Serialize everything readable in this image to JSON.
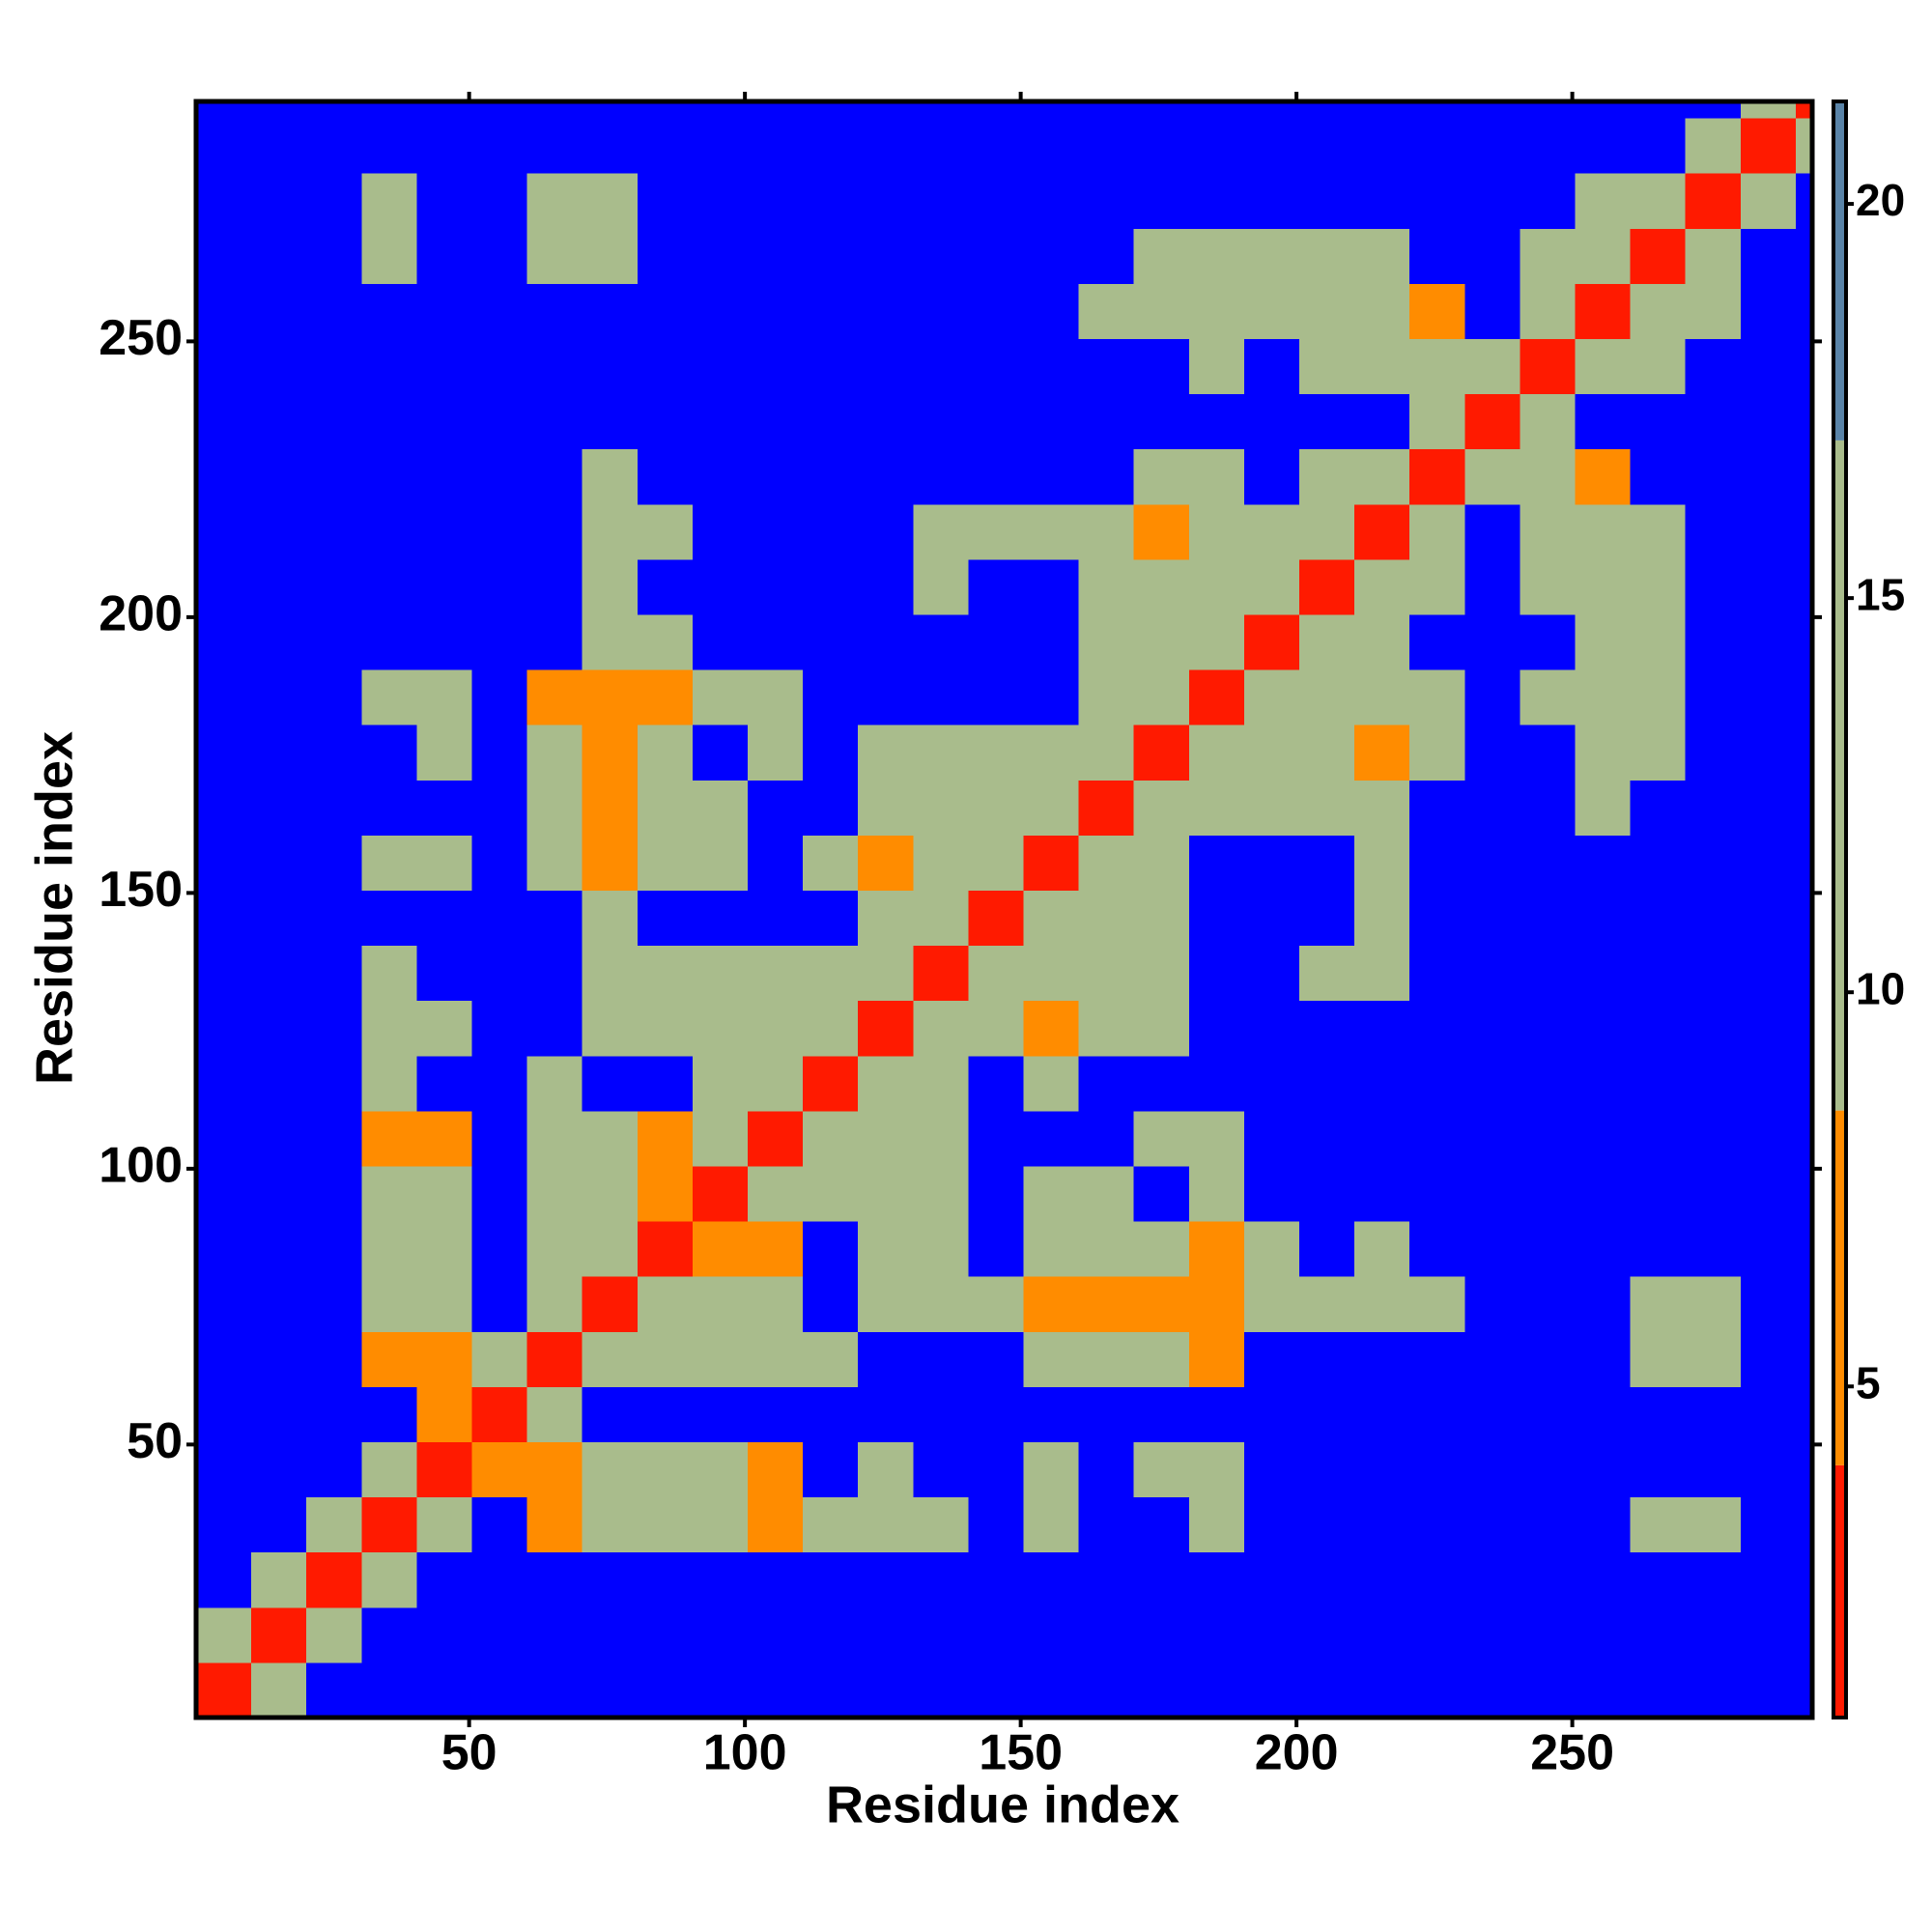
{
  "chart_data": {
    "type": "heatmap",
    "xlabel": "Residue index",
    "ylabel": "Residue index",
    "x_edges": [
      0.5,
      10.5,
      20.5,
      30.5,
      40.5,
      50.5,
      60.5,
      70.5,
      80.5,
      90.5,
      100.5,
      110.5,
      120.5,
      130.5,
      140.5,
      150.5,
      160.5,
      170.5,
      180.5,
      190.5,
      200.5,
      210.5,
      220.5,
      230.5,
      240.5,
      250.5,
      260.5,
      270.5,
      280.5,
      290.5,
      293.5
    ],
    "y_edges": [
      0.5,
      10.5,
      20.5,
      30.5,
      40.5,
      50.5,
      60.5,
      70.5,
      80.5,
      90.5,
      100.5,
      110.5,
      120.5,
      130.5,
      140.5,
      150.5,
      160.5,
      170.5,
      180.5,
      190.5,
      200.5,
      210.5,
      220.5,
      230.5,
      240.5,
      250.5,
      260.5,
      270.5,
      280.5,
      290.5,
      293.5
    ],
    "xlim": [
      0.5,
      293.5
    ],
    "ylim": [
      0.5,
      293.5
    ],
    "xticks": [
      50,
      100,
      150,
      200,
      250
    ],
    "yticks": [
      50,
      100,
      150,
      200,
      250
    ],
    "values": [
      [
        4,
        12,
        25,
        25,
        25,
        25,
        25,
        25,
        25,
        25,
        25,
        25,
        25,
        25,
        25,
        25,
        25,
        25,
        25,
        25,
        25,
        25,
        25,
        25,
        25,
        25,
        25,
        25,
        25,
        25
      ],
      [
        12,
        4,
        11,
        25,
        25,
        25,
        25,
        25,
        25,
        25,
        25,
        25,
        25,
        25,
        25,
        25,
        25,
        25,
        25,
        25,
        25,
        25,
        25,
        25,
        25,
        25,
        25,
        25,
        25,
        25
      ],
      [
        25,
        11,
        4,
        12,
        25,
        25,
        25,
        25,
        25,
        25,
        25,
        25,
        25,
        25,
        25,
        25,
        25,
        25,
        25,
        25,
        25,
        25,
        25,
        25,
        25,
        25,
        25,
        25,
        25,
        25
      ],
      [
        25,
        25,
        12,
        4,
        13,
        25,
        6,
        9,
        14,
        11,
        7,
        12,
        13,
        14,
        25,
        12,
        25,
        25,
        12,
        25,
        25,
        25,
        25,
        25,
        25,
        25,
        16,
        14,
        25,
        25
      ],
      [
        25,
        25,
        25,
        13,
        4,
        5,
        7,
        12,
        11,
        10,
        6,
        25,
        15,
        25,
        25,
        14,
        25,
        14,
        13,
        25,
        25,
        25,
        25,
        25,
        25,
        25,
        25,
        25,
        25,
        25
      ],
      [
        25,
        25,
        25,
        25,
        5,
        4,
        11,
        25,
        25,
        25,
        25,
        25,
        25,
        25,
        25,
        25,
        25,
        25,
        25,
        25,
        25,
        25,
        25,
        25,
        25,
        25,
        25,
        25,
        25,
        25
      ],
      [
        25,
        25,
        25,
        6,
        7,
        11,
        4,
        10,
        10,
        10,
        11,
        11,
        25,
        25,
        25,
        12,
        12,
        12,
        8,
        25,
        25,
        25,
        25,
        25,
        25,
        25,
        13,
        10,
        25,
        25
      ],
      [
        25,
        25,
        25,
        9,
        12,
        25,
        10,
        4,
        9,
        9,
        11,
        25,
        10,
        12,
        12,
        7,
        8,
        7,
        8,
        12,
        12,
        9,
        13,
        25,
        25,
        25,
        12,
        13,
        25,
        25
      ],
      [
        25,
        25,
        25,
        14,
        11,
        25,
        10,
        9,
        4,
        8,
        8,
        25,
        10,
        12,
        25,
        11,
        10,
        10,
        7,
        13,
        25,
        11,
        25,
        25,
        25,
        25,
        25,
        25,
        25,
        25
      ],
      [
        25,
        25,
        25,
        11,
        10,
        25,
        10,
        9,
        8,
        4,
        9,
        11,
        11,
        12,
        25,
        13,
        14,
        25,
        11,
        25,
        25,
        25,
        25,
        25,
        25,
        25,
        25,
        25,
        25,
        25
      ],
      [
        25,
        25,
        25,
        7,
        6,
        25,
        11,
        11,
        8,
        9,
        4,
        9,
        11,
        14,
        25,
        25,
        25,
        14,
        12,
        25,
        25,
        25,
        25,
        25,
        25,
        25,
        25,
        25,
        25,
        25
      ],
      [
        25,
        25,
        25,
        12,
        25,
        25,
        11,
        25,
        25,
        11,
        9,
        4,
        9,
        11,
        25,
        12,
        25,
        25,
        25,
        25,
        25,
        25,
        25,
        25,
        25,
        25,
        25,
        25,
        25,
        25
      ],
      [
        25,
        25,
        25,
        13,
        15,
        25,
        25,
        10,
        10,
        11,
        11,
        9,
        4,
        10,
        12,
        8,
        10,
        12,
        25,
        25,
        25,
        25,
        25,
        25,
        25,
        25,
        25,
        25,
        25,
        25
      ],
      [
        25,
        25,
        25,
        14,
        25,
        25,
        25,
        12,
        12,
        12,
        14,
        11,
        10,
        4,
        11,
        10,
        9,
        11,
        25,
        25,
        14,
        12,
        25,
        25,
        25,
        25,
        25,
        25,
        25,
        25
      ],
      [
        25,
        25,
        25,
        25,
        25,
        25,
        25,
        12,
        25,
        25,
        25,
        25,
        12,
        11,
        4,
        11,
        12,
        11,
        25,
        25,
        25,
        13,
        25,
        25,
        25,
        25,
        25,
        25,
        25,
        25
      ],
      [
        25,
        25,
        25,
        12,
        14,
        25,
        12,
        7,
        11,
        13,
        25,
        12,
        8,
        10,
        11,
        4,
        10,
        12,
        25,
        25,
        25,
        13,
        25,
        25,
        25,
        25,
        25,
        25,
        25,
        25
      ],
      [
        25,
        25,
        25,
        25,
        25,
        25,
        12,
        8,
        10,
        14,
        25,
        25,
        10,
        9,
        12,
        10,
        4,
        10,
        9,
        10,
        10,
        9,
        25,
        25,
        25,
        14,
        25,
        25,
        25,
        25
      ],
      [
        25,
        25,
        25,
        25,
        14,
        25,
        12,
        7,
        10,
        25,
        14,
        25,
        12,
        11,
        11,
        12,
        10,
        4,
        9,
        9,
        10,
        8,
        12,
        25,
        25,
        11,
        12,
        25,
        25,
        25
      ],
      [
        25,
        25,
        25,
        12,
        13,
        25,
        8,
        8,
        7,
        11,
        12,
        25,
        25,
        25,
        25,
        25,
        9,
        9,
        4,
        10,
        10,
        10,
        11,
        25,
        9,
        9,
        10,
        25,
        25,
        25
      ],
      [
        25,
        25,
        25,
        25,
        25,
        25,
        25,
        12,
        13,
        25,
        25,
        25,
        25,
        25,
        25,
        25,
        10,
        9,
        10,
        4,
        9,
        11,
        25,
        25,
        25,
        10,
        9,
        25,
        25,
        25
      ],
      [
        25,
        25,
        25,
        25,
        25,
        25,
        25,
        12,
        25,
        25,
        25,
        25,
        25,
        14,
        25,
        25,
        10,
        10,
        10,
        9,
        4,
        9,
        11,
        25,
        12,
        11,
        10,
        25,
        25,
        25
      ],
      [
        25,
        25,
        25,
        25,
        25,
        25,
        25,
        9,
        11,
        25,
        25,
        25,
        25,
        12,
        13,
        13,
        9,
        8,
        10,
        11,
        9,
        4,
        10,
        25,
        10,
        11,
        13,
        25,
        25,
        25
      ],
      [
        25,
        25,
        25,
        25,
        25,
        25,
        25,
        13,
        25,
        25,
        25,
        25,
        25,
        25,
        25,
        25,
        25,
        12,
        11,
        25,
        11,
        10,
        4,
        13,
        11,
        8,
        25,
        25,
        25,
        25
      ],
      [
        25,
        25,
        25,
        25,
        25,
        25,
        25,
        25,
        25,
        25,
        25,
        25,
        25,
        25,
        25,
        25,
        25,
        25,
        25,
        25,
        25,
        25,
        13,
        4,
        12,
        25,
        25,
        25,
        25,
        25
      ],
      [
        25,
        25,
        25,
        25,
        25,
        25,
        25,
        25,
        25,
        25,
        25,
        25,
        25,
        25,
        25,
        25,
        25,
        25,
        9,
        25,
        12,
        10,
        11,
        12,
        4,
        11,
        14,
        25,
        25,
        25
      ],
      [
        25,
        25,
        25,
        25,
        25,
        25,
        25,
        25,
        25,
        25,
        25,
        25,
        25,
        25,
        25,
        25,
        14,
        11,
        9,
        10,
        11,
        11,
        8,
        25,
        11,
        4,
        10,
        13,
        25,
        25
      ],
      [
        25,
        25,
        25,
        16,
        25,
        25,
        13,
        12,
        25,
        25,
        25,
        25,
        25,
        25,
        25,
        25,
        25,
        12,
        10,
        9,
        10,
        13,
        25,
        25,
        14,
        10,
        4,
        10,
        25,
        25
      ],
      [
        25,
        25,
        25,
        14,
        25,
        25,
        10,
        13,
        25,
        25,
        25,
        25,
        25,
        25,
        25,
        25,
        25,
        25,
        25,
        25,
        25,
        25,
        25,
        25,
        25,
        13,
        10,
        4,
        11,
        25
      ],
      [
        25,
        25,
        25,
        25,
        25,
        25,
        25,
        25,
        25,
        25,
        25,
        25,
        25,
        25,
        25,
        25,
        25,
        25,
        25,
        25,
        25,
        25,
        25,
        25,
        25,
        25,
        25,
        11,
        4,
        12
      ],
      [
        25,
        25,
        25,
        25,
        25,
        25,
        25,
        25,
        25,
        25,
        25,
        25,
        25,
        25,
        25,
        25,
        25,
        25,
        25,
        25,
        25,
        25,
        25,
        25,
        25,
        25,
        25,
        25,
        12,
        4
      ]
    ],
    "colorbar": {
      "lim": [
        0.8,
        21.3
      ],
      "ticks": [
        5,
        10,
        15,
        20
      ],
      "bands": [
        {
          "from": 0.8,
          "to": 4,
          "color": "#ff1a00"
        },
        {
          "from": 4,
          "to": 8.5,
          "color": "#ff8c00"
        },
        {
          "from": 8.5,
          "to": 17,
          "color": "#a9bc8c"
        },
        {
          "from": 17,
          "to": 21.3,
          "color": "#5a84a8"
        }
      ],
      "above_color": "#0000ff"
    }
  }
}
